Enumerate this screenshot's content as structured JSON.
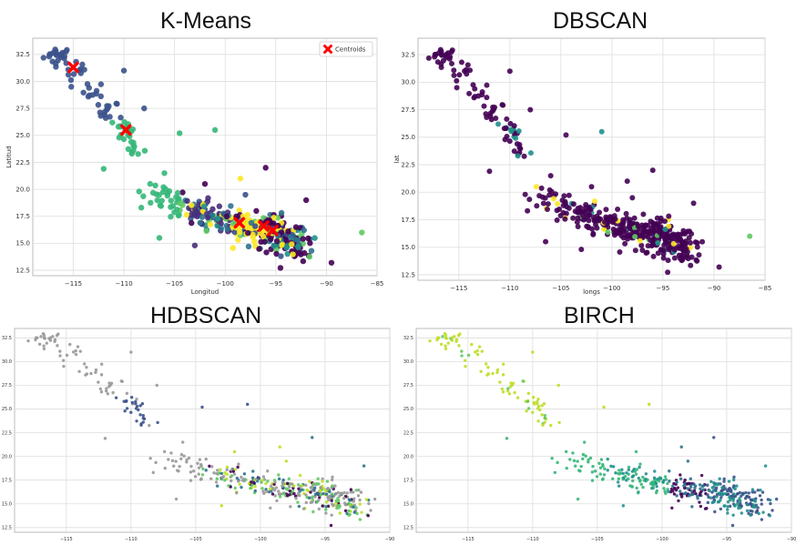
{
  "chart_data": [
    {
      "type": "scatter",
      "title": "K-Means",
      "xlabel": "Longitud",
      "ylabel": "Latitud",
      "xlim": [
        -119,
        -85
      ],
      "ylim": [
        12,
        34
      ],
      "xticks": [
        -115,
        -110,
        -105,
        -100,
        -95,
        -90,
        -85
      ],
      "yticks": [
        12.5,
        15.0,
        17.5,
        20.0,
        22.5,
        25.0,
        27.5,
        30.0,
        32.5
      ],
      "xtick_labels": [
        "−115",
        "−110",
        "−105",
        "−100",
        "−95",
        "−90",
        "−85"
      ],
      "ytick_labels": [
        "12.5",
        "15.0",
        "17.5",
        "20.0",
        "22.5",
        "25.0",
        "27.5",
        "30.0",
        "32.5"
      ],
      "grid": true,
      "legend": {
        "position": "top-right",
        "entries": [
          "Centroids"
        ]
      },
      "cluster_colors": [
        "#2c728e",
        "#3b528b",
        "#21918c",
        "#5ec962",
        "#35b779",
        "#fde725",
        "#440154",
        "#472d7b"
      ],
      "centroids": {
        "name": "Centroids",
        "color": "#ff0000",
        "points": [
          [
            -115.0,
            31.3
          ],
          [
            -109.8,
            25.5
          ],
          [
            -98.6,
            16.9
          ],
          [
            -96.2,
            16.6
          ],
          [
            -95.3,
            16.2
          ]
        ]
      }
    },
    {
      "type": "scatter",
      "title": "DBSCAN",
      "xlabel": "longs",
      "ylabel": "lat",
      "xlim": [
        -119,
        -85
      ],
      "ylim": [
        12,
        34
      ],
      "xticks": [
        -115,
        -110,
        -105,
        -100,
        -95,
        -90,
        -85
      ],
      "yticks": [
        12.5,
        15.0,
        17.5,
        20.0,
        22.5,
        25.0,
        27.5,
        30.0,
        32.5
      ],
      "xtick_labels": [
        "−115",
        "−110",
        "−105",
        "−100",
        "−95",
        "−90",
        "−85"
      ],
      "ytick_labels": [
        "12.5",
        "15.0",
        "17.5",
        "20.0",
        "22.5",
        "25.0",
        "27.5",
        "30.0",
        "32.5"
      ],
      "grid": true,
      "cluster_colors": [
        "#440154",
        "#440154",
        "#440154",
        "#3b528b",
        "#21918c",
        "#5ec962",
        "#fde725"
      ]
    },
    {
      "type": "scatter",
      "title": "HDBSCAN",
      "xlabel": "",
      "ylabel": "",
      "xlim": [
        -119,
        -90
      ],
      "ylim": [
        12,
        33.5
      ],
      "xticks": [
        -115,
        -110,
        -105,
        -100,
        -95,
        -90
      ],
      "yticks": [
        12.5,
        15.0,
        17.5,
        20.0,
        22.5,
        25.0,
        27.5,
        30.0,
        32.5
      ],
      "xtick_labels": [
        "−115",
        "−110",
        "−105",
        "−100",
        "−95",
        "−90"
      ],
      "ytick_labels": [
        "12.5",
        "15.0",
        "17.5",
        "20.0",
        "22.5",
        "25.0",
        "27.5",
        "30.0",
        "32.5"
      ],
      "grid": true,
      "cluster_colors": [
        "#999999",
        "#999999",
        "#999999",
        "#3b528b",
        "#2c728e",
        "#5ec962",
        "#bddf26",
        "#440154"
      ]
    },
    {
      "type": "scatter",
      "title": "BIRCH",
      "xlabel": "",
      "ylabel": "",
      "xlim": [
        -119,
        -90
      ],
      "ylim": [
        12,
        33.5
      ],
      "xticks": [
        -115,
        -110,
        -105,
        -100,
        -95,
        -90
      ],
      "yticks": [
        12.5,
        15.0,
        17.5,
        20.0,
        22.5,
        25.0,
        27.5,
        30.0,
        32.5
      ],
      "xtick_labels": [
        "−115",
        "−110",
        "−105",
        "−100",
        "−95",
        "−90"
      ],
      "ytick_labels": [
        "12.5",
        "15.0",
        "17.5",
        "20.0",
        "22.5",
        "25.0",
        "27.5",
        "30.0",
        "32.5"
      ],
      "grid": true,
      "cluster_colors": [
        "#bddf26",
        "#5ec962",
        "#35b779",
        "#21918c",
        "#2c728e",
        "#3b528b",
        "#440154"
      ]
    }
  ]
}
